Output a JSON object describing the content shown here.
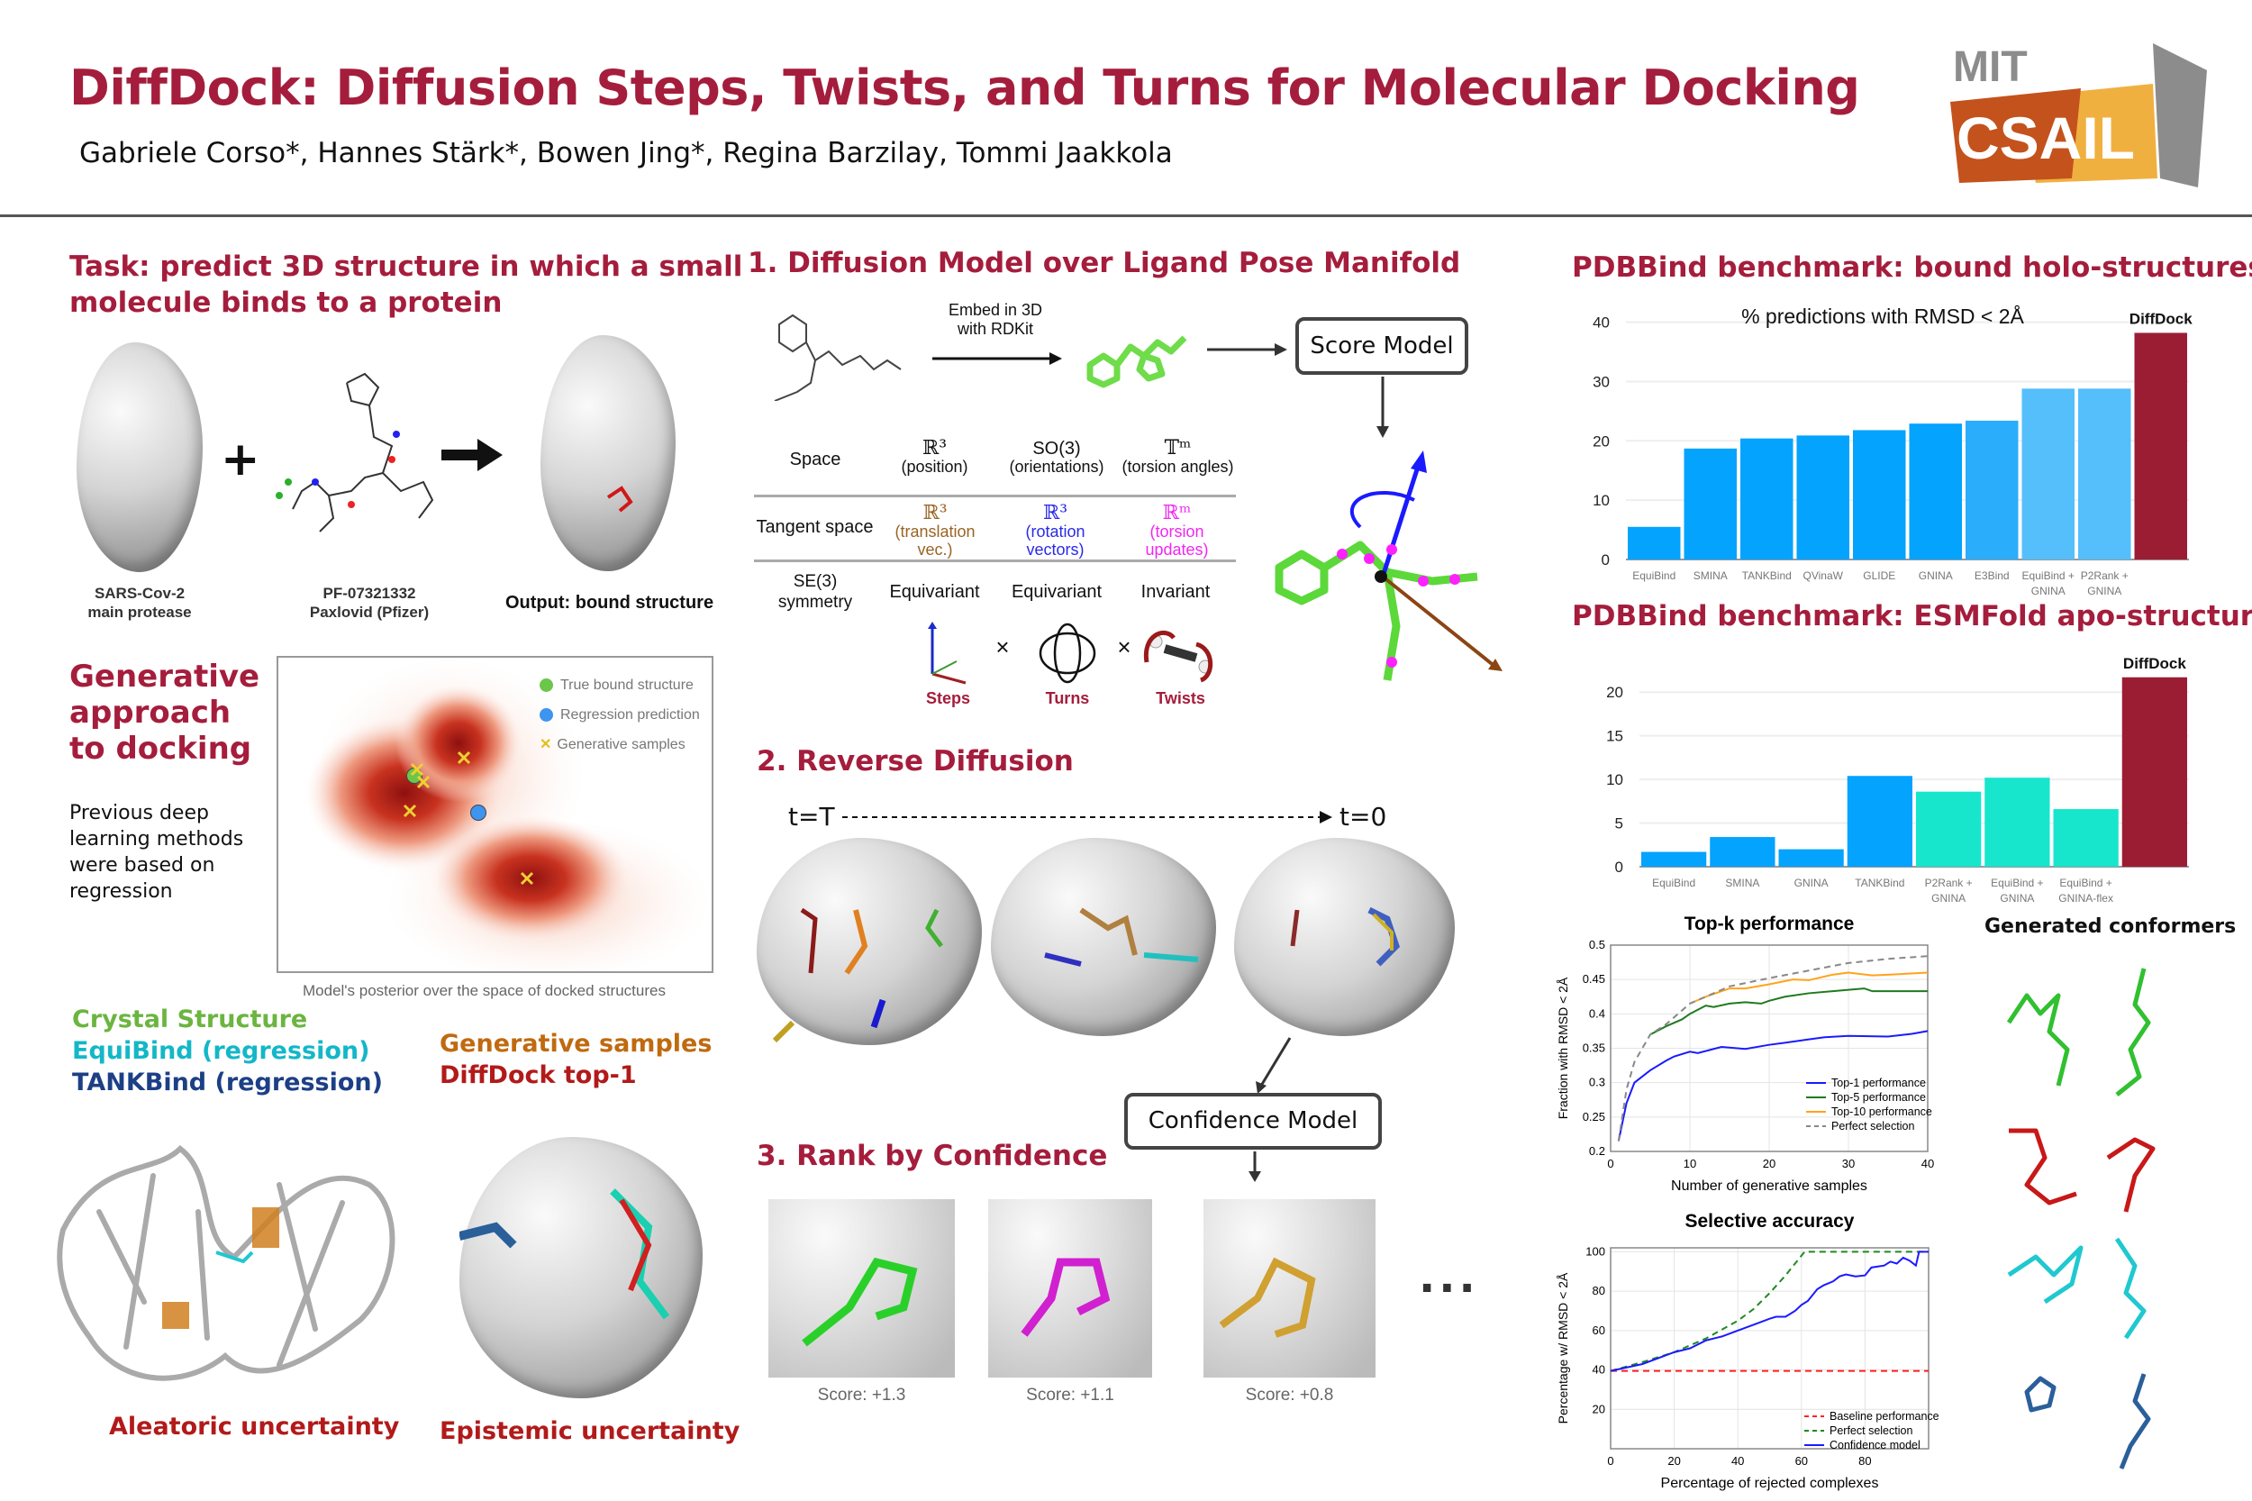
{
  "header": {
    "title": "DiffDock: Diffusion Steps, Twists, and Turns for Molecular Docking",
    "authors": "Gabriele Corso*, Hannes Stärk*, Bowen Jing*, Regina Barzilay, Tommi Jaakkola",
    "logo_top": "MIT",
    "logo_bottom": "CSAIL"
  },
  "task": {
    "heading_line1": "Task: predict 3D structure in which a small",
    "heading_line2": "molecule binds to a protein",
    "protein_label_1": "SARS-Cov-2",
    "protein_label_2": "main protease",
    "plus": "+",
    "ligand_label_1": "PF-07321332",
    "ligand_label_2": "Paxlovid (Pfizer)",
    "output_label": "Output: bound structure"
  },
  "generative": {
    "heading_1": "Generative",
    "heading_2": "approach",
    "heading_3": "to docking",
    "text_1": "Previous deep",
    "text_2": "learning methods",
    "text_3": "were based on",
    "text_4": "regression",
    "legend": [
      "True bound structure",
      "Regression prediction",
      "Generative samples"
    ],
    "caption": "Model's posterior over the space of docked structures"
  },
  "uncertainty": {
    "crystal": "Crystal Structure",
    "equibind": "EquiBind (regression)",
    "tankbind": "TANKBind (regression)",
    "gen_samples": "Generative samples",
    "diffdock_top1": "DiffDock top-1",
    "aleatoric": "Aleatoric uncertainty",
    "epistemic": "Epistemic uncertainty"
  },
  "diffusion": {
    "heading": "1.  Diffusion Model over Ligand Pose Manifold",
    "embed_1": "Embed in 3D",
    "embed_2": "with RDKit",
    "score_model": "Score Model",
    "table": {
      "row_space": "Space",
      "row_tangent": "Tangent space",
      "row_sym_1": "SE(3)",
      "row_sym_2": "symmetry",
      "space": [
        {
          "sym": "ℝ³",
          "desc": "(position)"
        },
        {
          "sym": "SO(3)",
          "desc": "(orientations)"
        },
        {
          "sym": "𝕋ᵐ",
          "desc": "(torsion angles)"
        }
      ],
      "tangent": [
        {
          "sym": "ℝ³",
          "desc": "(translation vec.)",
          "color": "#9a6424"
        },
        {
          "sym": "ℝ³",
          "desc": "(rotation vectors)",
          "color": "#2a2ae8"
        },
        {
          "sym": "ℝᵐ",
          "desc": "(torsion updates)",
          "color": "#f028f0"
        }
      ],
      "symmetry": [
        "Equivariant",
        "Equivariant",
        "Invariant"
      ],
      "times": "×",
      "labels": [
        "Steps",
        "Turns",
        "Twists"
      ]
    }
  },
  "reverse": {
    "heading": "2. Reverse Diffusion",
    "t_start": "t=T",
    "t_end": "t=0",
    "confidence_model": "Confidence Model"
  },
  "rank": {
    "heading": "3. Rank by Confidence",
    "scores": [
      "Score: +1.3",
      "Score: +1.1",
      "Score: +0.8"
    ],
    "ellipsis": "..."
  },
  "results": {
    "holo_heading": "PDBBind benchmark: bound holo-structures",
    "apo_heading": "PDBBind benchmark: ESMFold apo-structures",
    "conformers_heading": "Generated conformers"
  },
  "colors": {
    "accent": "#a51d3c",
    "blue": "#03a3fe",
    "light_blue": "#55bffc",
    "teal": "#17e6cd",
    "diffdock": "#9b1d34"
  },
  "chart_data": [
    {
      "type": "bar",
      "title": "% predictions with RMSD < 2Å",
      "categories": [
        "EquiBind",
        "SMINA",
        "TANKBind",
        "QVinaW",
        "GLIDE",
        "GNINA",
        "E3Bind",
        "EquiBind + GNINA",
        "P2Rank + GNINA",
        "DiffDock"
      ],
      "values": [
        5.5,
        18.7,
        20.4,
        20.9,
        21.8,
        22.9,
        23.4,
        28.8,
        28.8,
        38.2
      ],
      "colors": [
        "#03a3fe",
        "#03a3fe",
        "#03a3fe",
        "#03a3fe",
        "#03a3fe",
        "#03a3fe",
        "#2aaefc",
        "#55bffc",
        "#55bffc",
        "#9b1d34"
      ],
      "highlight_label": "DiffDock",
      "yticks": [
        0,
        10,
        20,
        30,
        40
      ],
      "ylim": [
        0,
        41
      ],
      "grid": true
    },
    {
      "type": "bar",
      "title": "",
      "categories": [
        "EquiBind",
        "SMINA",
        "GNINA",
        "TANKBind",
        "P2Rank + GNINA",
        "EquiBind + GNINA",
        "EquiBind + GNINA-flex",
        "DiffDock"
      ],
      "values": [
        1.7,
        3.4,
        2.0,
        10.4,
        8.6,
        10.2,
        6.6,
        21.7
      ],
      "colors": [
        "#03a3fe",
        "#03a3fe",
        "#03a3fe",
        "#03a3fe",
        "#17e6cd",
        "#17e6cd",
        "#17e6cd",
        "#9b1d34"
      ],
      "highlight_label": "DiffDock",
      "yticks": [
        0,
        5,
        10,
        15,
        20
      ],
      "ylim": [
        0,
        22.5
      ],
      "grid": true
    },
    {
      "type": "line",
      "title": "Top-k performance",
      "xlabel": "Number of generative samples",
      "ylabel": "Fraction with RMSD < 2Å",
      "xlim": [
        0,
        40
      ],
      "ylim": [
        0.2,
        0.5
      ],
      "xticks": [
        0,
        10,
        20,
        30,
        40
      ],
      "yticks": [
        0.2,
        0.25,
        0.3,
        0.35,
        0.4,
        0.45,
        0.5
      ],
      "legend_position": "bottom-right",
      "series": [
        {
          "name": "Top-1 performance",
          "color": "#1a1aff",
          "dash": false,
          "x": [
            1,
            2,
            3,
            5,
            7,
            8,
            10,
            11,
            14,
            17,
            20,
            22,
            25,
            27,
            30,
            35,
            38,
            40
          ],
          "y": [
            0.215,
            0.27,
            0.3,
            0.318,
            0.332,
            0.338,
            0.345,
            0.343,
            0.352,
            0.349,
            0.355,
            0.358,
            0.363,
            0.366,
            0.368,
            0.367,
            0.371,
            0.375
          ]
        },
        {
          "name": "Top-5 performance",
          "color": "#1f7a1f",
          "dash": false,
          "x": [
            5,
            7,
            9,
            10,
            12,
            13,
            15,
            17,
            19,
            20,
            22,
            25,
            30,
            32,
            33,
            35,
            40
          ],
          "y": [
            0.37,
            0.382,
            0.392,
            0.4,
            0.412,
            0.41,
            0.415,
            0.417,
            0.415,
            0.419,
            0.425,
            0.43,
            0.435,
            0.437,
            0.433,
            0.433,
            0.433
          ]
        },
        {
          "name": "Top-10 performance",
          "color": "#ffa31a",
          "dash": false,
          "x": [
            10,
            12,
            15,
            17,
            20,
            23,
            25,
            28,
            30,
            33,
            35,
            40
          ],
          "y": [
            0.415,
            0.425,
            0.437,
            0.437,
            0.443,
            0.45,
            0.449,
            0.457,
            0.46,
            0.456,
            0.457,
            0.46
          ]
        },
        {
          "name": "Perfect selection",
          "color": "#888888",
          "dash": true,
          "x": [
            1,
            2,
            3,
            5,
            7,
            10,
            12,
            15,
            20,
            25,
            30,
            35,
            40
          ],
          "y": [
            0.215,
            0.29,
            0.33,
            0.37,
            0.385,
            0.415,
            0.425,
            0.44,
            0.452,
            0.463,
            0.474,
            0.48,
            0.484
          ]
        }
      ]
    },
    {
      "type": "line",
      "title": "Selective accuracy",
      "xlabel": "Percentage of rejected complexes",
      "ylabel": "Percentage w/ RMSD < 2Å",
      "xlim": [
        0,
        100
      ],
      "ylim": [
        0,
        102
      ],
      "xticks": [
        0,
        20,
        40,
        60,
        80
      ],
      "yticks": [
        20,
        40,
        60,
        80,
        100
      ],
      "legend_position": "bottom-right",
      "series": [
        {
          "name": "Baseline performance",
          "color": "#ff2020",
          "dash": true,
          "x": [
            0,
            100
          ],
          "y": [
            39.5,
            39.5
          ]
        },
        {
          "name": "Perfect selection",
          "color": "#1f8a1f",
          "dash": true,
          "x": [
            0,
            10,
            20,
            30,
            40,
            45,
            50,
            55,
            58,
            60,
            61,
            100
          ],
          "y": [
            39.5,
            44,
            49,
            56,
            65,
            71,
            79,
            88,
            94,
            98,
            100,
            100
          ]
        },
        {
          "name": "Confidence model",
          "color": "#1a1aff",
          "dash": false,
          "x": [
            0,
            10,
            20,
            25,
            30,
            35,
            40,
            45,
            50,
            52,
            55,
            58,
            60,
            62,
            65,
            67,
            70,
            72,
            74,
            77,
            80,
            82,
            84,
            86,
            88,
            90,
            92,
            94,
            96,
            97,
            100
          ],
          "y": [
            39.5,
            43,
            49,
            51,
            55,
            57,
            60,
            63,
            66,
            67,
            67,
            70,
            73,
            75,
            81,
            83,
            85,
            87.5,
            88.5,
            87.5,
            88,
            92,
            92.5,
            93,
            95,
            94,
            97,
            95.5,
            93,
            100,
            100
          ]
        }
      ]
    }
  ]
}
